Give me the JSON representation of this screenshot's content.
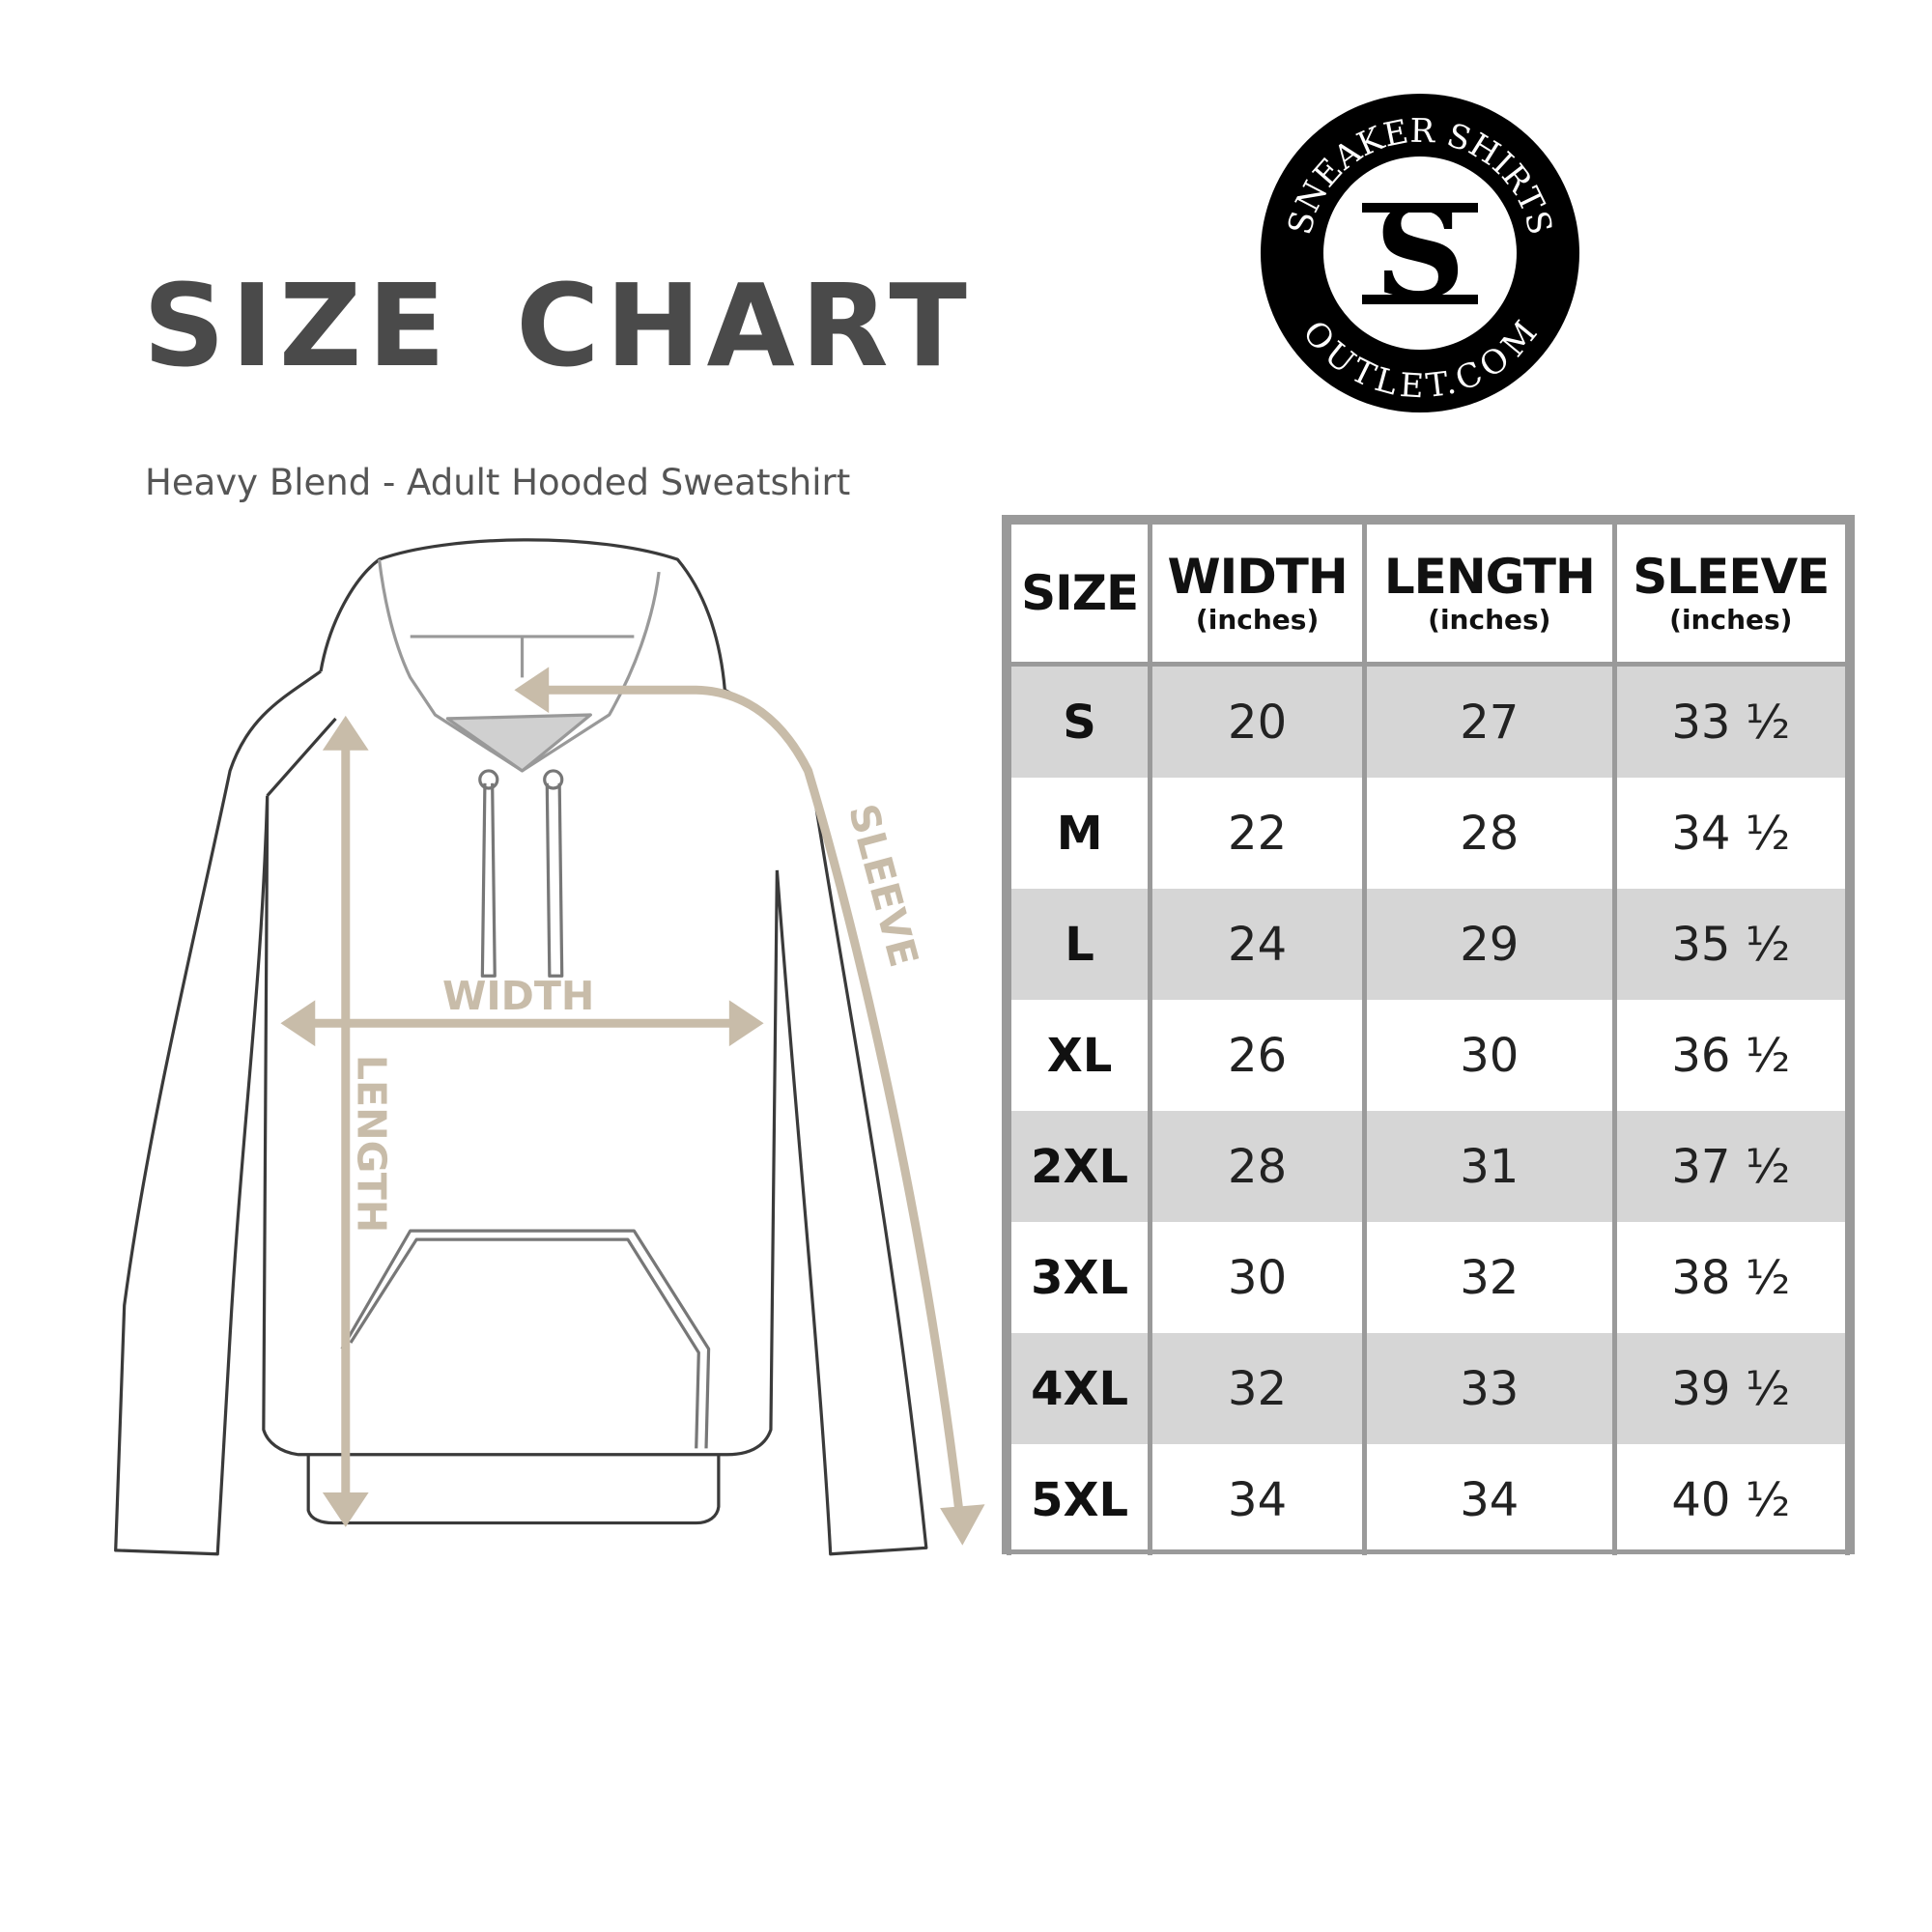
{
  "title": "SIZE CHART",
  "subtitle": "Heavy Blend - Adult Hooded Sweatshirt",
  "logo": {
    "top_text": "SNEAKER SHIRTS",
    "bottom_text": "OUTLET.COM",
    "monogram": "SS"
  },
  "diagram": {
    "labels": {
      "width": "WIDTH",
      "length": "LENGTH",
      "sleeve": "SLEEVE"
    },
    "arrow_color": "#c8bca9"
  },
  "table": {
    "headers": [
      {
        "label": "SIZE",
        "unit": ""
      },
      {
        "label": "WIDTH",
        "unit": "(inches)"
      },
      {
        "label": "LENGTH",
        "unit": "(inches)"
      },
      {
        "label": "SLEEVE",
        "unit": "(inches)"
      }
    ],
    "rows": [
      [
        "S",
        "20",
        "27",
        "33 ½"
      ],
      [
        "M",
        "22",
        "28",
        "34 ½"
      ],
      [
        "L",
        "24",
        "29",
        "35 ½"
      ],
      [
        "XL",
        "26",
        "30",
        "36 ½"
      ],
      [
        "2XL",
        "28",
        "31",
        "37 ½"
      ],
      [
        "3XL",
        "30",
        "32",
        "38 ½"
      ],
      [
        "4XL",
        "32",
        "33",
        "39 ½"
      ],
      [
        "5XL",
        "34",
        "34",
        "40 ½"
      ]
    ],
    "stripe_color": "#d6d6d6",
    "border_color": "#9a9a9a"
  }
}
